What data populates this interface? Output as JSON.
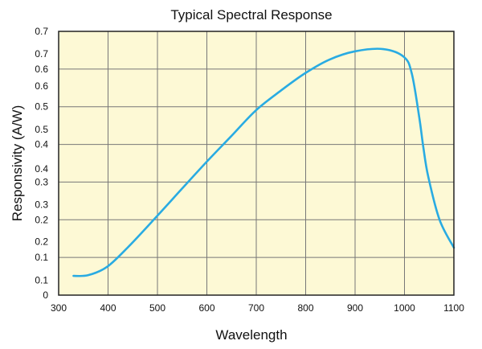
{
  "chart_data": {
    "type": "line",
    "title": "Typical Spectral Response",
    "xlabel": "Wavelength",
    "ylabel": "Responsivity (A/W)",
    "xlim": [
      300,
      1100
    ],
    "ylim": [
      0,
      0.7
    ],
    "grid": true,
    "colors": {
      "background": "#fdf9d5",
      "line": "#29abe2",
      "grid": "#777777"
    },
    "x_ticks": [
      {
        "value": 300,
        "label": "300"
      },
      {
        "value": 400,
        "label": "400"
      },
      {
        "value": 500,
        "label": "500"
      },
      {
        "value": 600,
        "label": "600"
      },
      {
        "value": 700,
        "label": "700"
      },
      {
        "value": 800,
        "label": "800"
      },
      {
        "value": 900,
        "label": "900"
      },
      {
        "value": 1000,
        "label": "1000"
      },
      {
        "value": 1100,
        "label": "1100"
      }
    ],
    "y_gridlines": [
      0,
      0.1,
      0.2,
      0.3,
      0.4,
      0.5,
      0.6,
      0.7
    ],
    "y_ticks": [
      {
        "value": 0.7,
        "label": "0.7"
      },
      {
        "value": 0.64,
        "label": "0.7"
      },
      {
        "value": 0.6,
        "label": "0.6"
      },
      {
        "value": 0.555,
        "label": "0.6"
      },
      {
        "value": 0.5,
        "label": "0.5"
      },
      {
        "value": 0.44,
        "label": "0.5"
      },
      {
        "value": 0.4,
        "label": "0.4"
      },
      {
        "value": 0.335,
        "label": "0.4"
      },
      {
        "value": 0.3,
        "label": "0.3"
      },
      {
        "value": 0.24,
        "label": "0.3"
      },
      {
        "value": 0.2,
        "label": "0.2"
      },
      {
        "value": 0.142,
        "label": "0.2"
      },
      {
        "value": 0.1,
        "label": "0.1"
      },
      {
        "value": 0.04,
        "label": "0.1"
      },
      {
        "value": 0,
        "label": "0"
      }
    ],
    "series": [
      {
        "name": "Responsivity",
        "x": [
          330,
          360,
          398,
          441,
          498,
          550,
          599,
          648,
          699,
          750,
          799,
          848,
          900,
          957,
          999,
          1015,
          1030,
          1038,
          1048,
          1071,
          1100
        ],
        "y": [
          0.051,
          0.053,
          0.075,
          0.128,
          0.208,
          0.283,
          0.353,
          0.42,
          0.49,
          0.543,
          0.589,
          0.625,
          0.647,
          0.653,
          0.632,
          0.587,
          0.471,
          0.394,
          0.315,
          0.2,
          0.126
        ]
      }
    ]
  }
}
